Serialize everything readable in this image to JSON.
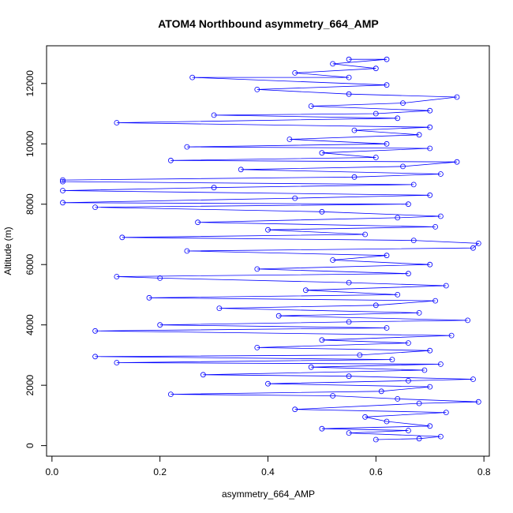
{
  "chart_data": {
    "type": "scatter",
    "title": "ATOM4 Northbound asymmetry_664_AMP",
    "xlabel": "asymmetry_664_AMP",
    "ylabel": "Altitude (m)",
    "xlim": [
      -0.01,
      0.81
    ],
    "ylim": [
      -350,
      13250
    ],
    "x_ticks": [
      0.0,
      0.2,
      0.4,
      0.6,
      0.8
    ],
    "x_tick_labels": [
      "0.0",
      "0.2",
      "0.4",
      "0.6",
      "0.8"
    ],
    "y_ticks": [
      0,
      2000,
      4000,
      6000,
      8000,
      10000,
      12000
    ],
    "y_tick_labels": [
      "0",
      "2000",
      "4000",
      "6000",
      "8000",
      "10000",
      "12000"
    ],
    "grid": false,
    "legend": "none",
    "marker": "open-circle",
    "connected": true,
    "series": [
      {
        "color": "#0000ff",
        "points": [
          [
            0.6,
            200
          ],
          [
            0.68,
            230
          ],
          [
            0.72,
            300
          ],
          [
            0.55,
            420
          ],
          [
            0.66,
            500
          ],
          [
            0.5,
            560
          ],
          [
            0.7,
            650
          ],
          [
            0.62,
            800
          ],
          [
            0.58,
            950
          ],
          [
            0.73,
            1100
          ],
          [
            0.45,
            1200
          ],
          [
            0.68,
            1400
          ],
          [
            0.79,
            1450
          ],
          [
            0.64,
            1550
          ],
          [
            0.52,
            1650
          ],
          [
            0.22,
            1700
          ],
          [
            0.61,
            1800
          ],
          [
            0.7,
            1950
          ],
          [
            0.4,
            2050
          ],
          [
            0.66,
            2150
          ],
          [
            0.78,
            2200
          ],
          [
            0.55,
            2300
          ],
          [
            0.28,
            2350
          ],
          [
            0.69,
            2500
          ],
          [
            0.48,
            2600
          ],
          [
            0.72,
            2700
          ],
          [
            0.12,
            2750
          ],
          [
            0.63,
            2850
          ],
          [
            0.08,
            2950
          ],
          [
            0.57,
            3000
          ],
          [
            0.7,
            3150
          ],
          [
            0.38,
            3250
          ],
          [
            0.66,
            3400
          ],
          [
            0.5,
            3500
          ],
          [
            0.74,
            3650
          ],
          [
            0.08,
            3800
          ],
          [
            0.62,
            3900
          ],
          [
            0.2,
            4000
          ],
          [
            0.55,
            4100
          ],
          [
            0.77,
            4150
          ],
          [
            0.42,
            4300
          ],
          [
            0.68,
            4400
          ],
          [
            0.31,
            4550
          ],
          [
            0.6,
            4650
          ],
          [
            0.71,
            4800
          ],
          [
            0.18,
            4900
          ],
          [
            0.64,
            5000
          ],
          [
            0.47,
            5150
          ],
          [
            0.73,
            5300
          ],
          [
            0.55,
            5400
          ],
          [
            0.2,
            5550
          ],
          [
            0.12,
            5600
          ],
          [
            0.66,
            5700
          ],
          [
            0.38,
            5850
          ],
          [
            0.7,
            6000
          ],
          [
            0.52,
            6150
          ],
          [
            0.62,
            6300
          ],
          [
            0.25,
            6450
          ],
          [
            0.78,
            6550
          ],
          [
            0.79,
            6700
          ],
          [
            0.67,
            6800
          ],
          [
            0.13,
            6900
          ],
          [
            0.58,
            7000
          ],
          [
            0.4,
            7150
          ],
          [
            0.71,
            7250
          ],
          [
            0.27,
            7400
          ],
          [
            0.64,
            7550
          ],
          [
            0.72,
            7600
          ],
          [
            0.5,
            7750
          ],
          [
            0.08,
            7900
          ],
          [
            0.66,
            8000
          ],
          [
            0.02,
            8050
          ],
          [
            0.45,
            8200
          ],
          [
            0.7,
            8300
          ],
          [
            0.02,
            8450
          ],
          [
            0.3,
            8550
          ],
          [
            0.67,
            8650
          ],
          [
            0.02,
            8750
          ],
          [
            0.02,
            8800
          ],
          [
            0.56,
            8900
          ],
          [
            0.72,
            9000
          ],
          [
            0.35,
            9150
          ],
          [
            0.65,
            9250
          ],
          [
            0.75,
            9400
          ],
          [
            0.22,
            9450
          ],
          [
            0.6,
            9550
          ],
          [
            0.5,
            9700
          ],
          [
            0.7,
            9850
          ],
          [
            0.25,
            9900
          ],
          [
            0.62,
            10000
          ],
          [
            0.44,
            10150
          ],
          [
            0.68,
            10300
          ],
          [
            0.56,
            10450
          ],
          [
            0.7,
            10550
          ],
          [
            0.12,
            10700
          ],
          [
            0.64,
            10850
          ],
          [
            0.3,
            10950
          ],
          [
            0.6,
            11000
          ],
          [
            0.7,
            11100
          ],
          [
            0.48,
            11250
          ],
          [
            0.65,
            11350
          ],
          [
            0.75,
            11550
          ],
          [
            0.55,
            11650
          ],
          [
            0.38,
            11800
          ],
          [
            0.62,
            11950
          ],
          [
            0.26,
            12200
          ],
          [
            0.55,
            12200
          ],
          [
            0.45,
            12350
          ],
          [
            0.6,
            12500
          ],
          [
            0.52,
            12650
          ],
          [
            0.62,
            12800
          ],
          [
            0.55,
            12800
          ]
        ]
      }
    ]
  }
}
